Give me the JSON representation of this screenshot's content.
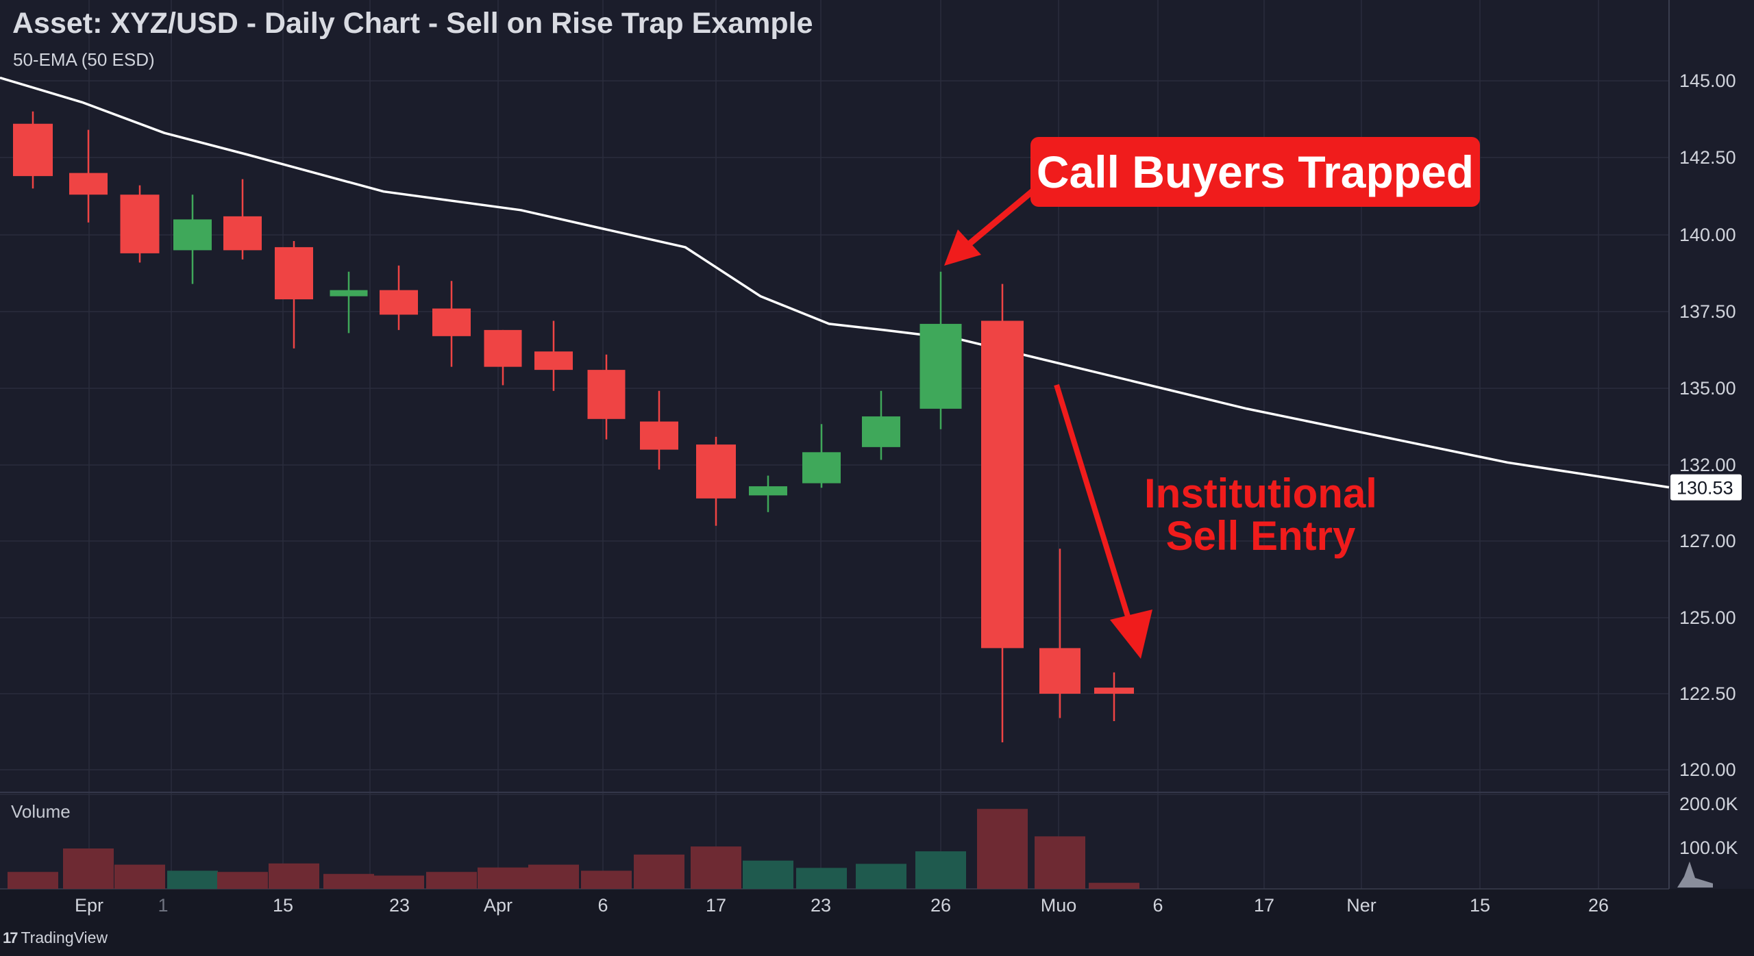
{
  "header": {
    "title": "Asset: XYZ/USD - Daily Chart - Sell on Rise Trap Example",
    "indicator_label": "50-EMA (50 ESD)"
  },
  "volume_pane": {
    "label": "Volume"
  },
  "annotations": {
    "callout": "Call Buyers Trapped",
    "entry_line1": "Institutional",
    "entry_line2": "Sell Entry"
  },
  "brand": {
    "logo": "17",
    "name": "TradingView"
  },
  "colors": {
    "background": "#1b1d2b",
    "grid": "#2a2d3d",
    "up": "#3fa85a",
    "down": "#ef4444",
    "ema": "#ffffff",
    "annotation": "#f01c1c",
    "vol_up": "#1f5a4e",
    "vol_down": "#6e2a33"
  },
  "chart_data": {
    "type": "candlestick",
    "title": "Asset: XYZ/USD - Daily Chart - Sell on Rise Trap Example",
    "price_axis": {
      "ticks": [
        "145.00",
        "142.50",
        "140.00",
        "137.50",
        "135.00",
        "132.00",
        "127.00",
        "125.00",
        "122.50",
        "120.00"
      ],
      "current_value_label": "130.53"
    },
    "volume_axis": {
      "ticks": [
        "200.0K",
        "100.0K"
      ]
    },
    "x_tick_labels": [
      "Epr",
      "1",
      "15",
      "23",
      "Apr",
      "6",
      "17",
      "23",
      "26",
      "Muo",
      "6",
      "17",
      "Ner",
      "15",
      "26"
    ],
    "candles": [
      {
        "o": 143.6,
        "h": 144.0,
        "l": 141.5,
        "c": 141.9
      },
      {
        "o": 142.0,
        "h": 143.4,
        "l": 140.4,
        "c": 141.3
      },
      {
        "o": 141.3,
        "h": 141.6,
        "l": 139.1,
        "c": 139.4
      },
      {
        "o": 139.5,
        "h": 141.3,
        "l": 138.4,
        "c": 140.5
      },
      {
        "o": 140.6,
        "h": 141.8,
        "l": 139.2,
        "c": 139.5
      },
      {
        "o": 139.6,
        "h": 139.8,
        "l": 136.3,
        "c": 137.9
      },
      {
        "o": 138.0,
        "h": 138.8,
        "l": 136.8,
        "c": 138.2
      },
      {
        "o": 138.2,
        "h": 139.0,
        "l": 136.9,
        "c": 137.4
      },
      {
        "o": 137.6,
        "h": 138.5,
        "l": 135.7,
        "c": 136.7
      },
      {
        "o": 136.9,
        "h": 136.9,
        "l": 135.1,
        "c": 135.7
      },
      {
        "o": 136.2,
        "h": 137.2,
        "l": 134.9,
        "c": 135.6
      },
      {
        "o": 135.6,
        "h": 136.1,
        "l": 133.0,
        "c": 133.8
      },
      {
        "o": 133.7,
        "h": 134.9,
        "l": 131.7,
        "c": 132.6
      },
      {
        "o": 132.8,
        "h": 133.1,
        "l": 128.0,
        "c": 129.8
      },
      {
        "o": 130.0,
        "h": 131.3,
        "l": 128.9,
        "c": 130.6
      },
      {
        "o": 130.8,
        "h": 133.6,
        "l": 130.5,
        "c": 132.5
      },
      {
        "o": 132.7,
        "h": 134.9,
        "l": 132.2,
        "c": 133.9
      },
      {
        "o": 134.2,
        "h": 138.8,
        "l": 133.4,
        "c": 137.1
      },
      {
        "o": 137.2,
        "h": 138.4,
        "l": 120.9,
        "c": 124.0
      },
      {
        "o": 124.0,
        "h": 126.8,
        "l": 121.7,
        "c": 122.5
      },
      {
        "o": 122.7,
        "h": 123.2,
        "l": 121.6,
        "c": 122.5
      }
    ],
    "volume": [
      {
        "v": 42000,
        "dir": "down"
      },
      {
        "v": 100000,
        "dir": "down"
      },
      {
        "v": 60000,
        "dir": "down"
      },
      {
        "v": 45000,
        "dir": "up"
      },
      {
        "v": 42000,
        "dir": "down"
      },
      {
        "v": 63000,
        "dir": "down"
      },
      {
        "v": 37000,
        "dir": "down"
      },
      {
        "v": 33000,
        "dir": "down"
      },
      {
        "v": 42000,
        "dir": "down"
      },
      {
        "v": 53000,
        "dir": "down"
      },
      {
        "v": 60000,
        "dir": "down"
      },
      {
        "v": 45000,
        "dir": "down"
      },
      {
        "v": 85000,
        "dir": "down"
      },
      {
        "v": 105000,
        "dir": "down"
      },
      {
        "v": 70000,
        "dir": "up"
      },
      {
        "v": 52000,
        "dir": "up"
      },
      {
        "v": 62000,
        "dir": "up"
      },
      {
        "v": 93000,
        "dir": "up"
      },
      {
        "v": 198000,
        "dir": "down"
      },
      {
        "v": 130000,
        "dir": "down"
      },
      {
        "v": 15000,
        "dir": "down"
      }
    ],
    "ema": [
      145.1,
      144.3,
      143.3,
      142.6,
      141.4,
      140.8,
      140.2,
      139.6,
      138.0,
      137.1,
      136.9,
      136.6,
      134.2,
      132.1,
      130.53
    ]
  }
}
